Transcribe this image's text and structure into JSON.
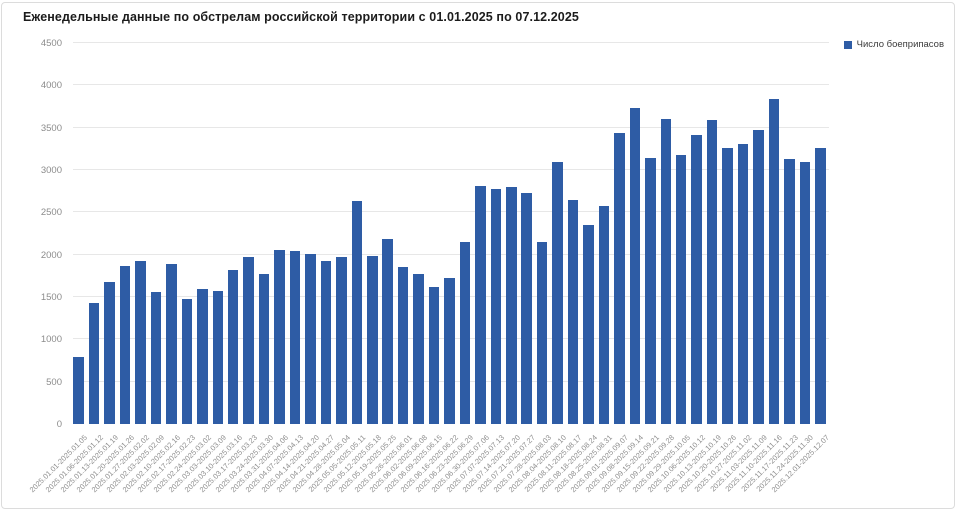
{
  "chart_data": {
    "type": "bar",
    "title": "Еженедельные данные по обстрелам российской территории с 01.01.2025 по 07.12.2025",
    "legend_label": "Число боеприпасов",
    "legend_position": "top-right",
    "grid": true,
    "xlabel": "",
    "ylabel": "",
    "ylim": [
      0,
      4500
    ],
    "yticks": [
      0,
      500,
      1000,
      1500,
      2000,
      2500,
      3000,
      3500,
      4000,
      4500
    ],
    "colors": {
      "bar": "#2e5ca5",
      "grid": "#e7e7e7",
      "tick_text": "#8c8c8c",
      "title_text": "#1c1c1c"
    },
    "categories": [
      "2025.01.01-2025.01.05",
      "2025.01.06-2025.01.12",
      "2025.01.13-2025.01.19",
      "2025.01.20-2025.01.26",
      "2025.01.27-2025.02.02",
      "2025.02.03-2025.02.09",
      "2025.02.10-2025.02.16",
      "2025.02.17-2025.02.23",
      "2025.02.24-2025.03.02",
      "2025.03.03-2025.03.09",
      "2025.03.10-2025.03.16",
      "2025.03.17-2025.03.23",
      "2025.03.24-2025.03.30",
      "2025.03.31-2025.04.06",
      "2025.04.07-2025.04.13",
      "2025.04.14-2025.04.20",
      "2025.04.21-2025.04.27",
      "2025.04.28-2025.05.04",
      "2025.05.05-2025.05.11",
      "2025.05.12-2025.05.18",
      "2025.05.19-2025.05.25",
      "2025.05.26-2025.06.01",
      "2025.06.02-2025.06.08",
      "2025.06.09-2025.06.15",
      "2025.06.16-2025.06.22",
      "2025.06.23-2025.06.29",
      "2025.06.30-2025.07.06",
      "2025.07.07-2025.07.13",
      "2025.07.14-2025.07.20",
      "2025.07.21-2025.07.27",
      "2025.07.28-2025.08.03",
      "2025.08.04-2025.08.10",
      "2025.08.11-2025.08.17",
      "2025.08.18-2025.08.24",
      "2025.08.25-2025.08.31",
      "2025.09.01-2025.09.07",
      "2025.09.08-2025.09.14",
      "2025.09.15-2025.09.21",
      "2025.09.22-2025.09.28",
      "2025.09.29-2025.10.05",
      "2025.10.06-2025.10.12",
      "2025.10.13-2025.10.19",
      "2025.10.20-2025.10.26",
      "2025.10.27-2025.11.02",
      "2025.11.03-2025.11.09",
      "2025.11.10-2025.11.16",
      "2025.11.17-2025.11.23",
      "2025.11.24-2025.11.30",
      "2025.12.01-2025.12.07"
    ],
    "series": [
      {
        "name": "Число боеприпасов",
        "values": [
          790,
          1430,
          1680,
          1870,
          1920,
          1560,
          1890,
          1480,
          1590,
          1570,
          1820,
          1970,
          1770,
          2060,
          2040,
          2010,
          1920,
          1970,
          2630,
          1980,
          2180,
          1860,
          1770,
          1620,
          1720,
          2150,
          2810,
          2770,
          2800,
          2730,
          2150,
          3090,
          2650,
          2350,
          2580,
          3440,
          3730,
          3140,
          3600,
          3180,
          3410,
          3590,
          3260,
          3310,
          3470,
          3840,
          3130,
          3090,
          3260
        ]
      }
    ]
  }
}
